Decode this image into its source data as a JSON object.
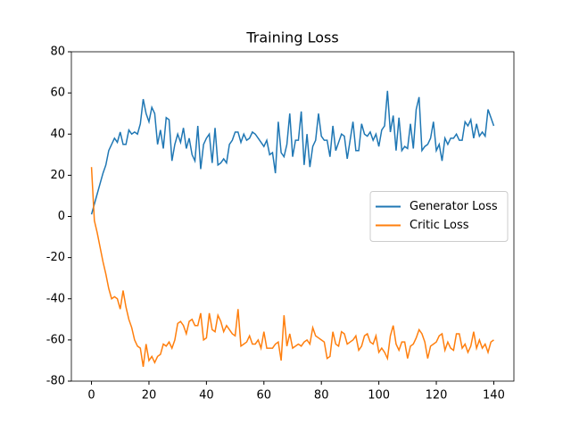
{
  "chart_data": {
    "type": "line",
    "title": "Training Loss",
    "x": [
      0,
      1,
      2,
      3,
      4,
      5,
      6,
      7,
      8,
      9,
      10,
      11,
      12,
      13,
      14,
      15,
      16,
      17,
      18,
      19,
      20,
      21,
      22,
      23,
      24,
      25,
      26,
      27,
      28,
      29,
      30,
      31,
      32,
      33,
      34,
      35,
      36,
      37,
      38,
      39,
      40,
      41,
      42,
      43,
      44,
      45,
      46,
      47,
      48,
      49,
      50,
      51,
      52,
      53,
      54,
      55,
      56,
      57,
      58,
      59,
      60,
      61,
      62,
      63,
      64,
      65,
      66,
      67,
      68,
      69,
      70,
      71,
      72,
      73,
      74,
      75,
      76,
      77,
      78,
      79,
      80,
      81,
      82,
      83,
      84,
      85,
      86,
      87,
      88,
      89,
      90,
      91,
      92,
      93,
      94,
      95,
      96,
      97,
      98,
      99,
      100,
      101,
      102,
      103,
      104,
      105,
      106,
      107,
      108,
      109,
      110,
      111,
      112,
      113,
      114,
      115,
      116,
      117,
      118,
      119,
      120,
      121,
      122,
      123,
      124,
      125,
      126,
      127,
      128,
      129,
      130,
      131,
      132,
      133,
      134,
      135,
      136,
      137,
      138,
      139,
      140
    ],
    "series": [
      {
        "name": "Generator Loss",
        "color": "#1f77b4",
        "values": [
          1,
          6,
          11,
          16,
          21,
          25,
          32,
          35,
          38,
          36,
          41,
          35,
          35,
          42,
          40,
          41,
          40,
          45,
          57,
          50,
          46,
          53,
          50,
          35,
          42,
          33,
          48,
          47,
          27,
          35,
          40,
          36,
          43,
          33,
          38,
          30,
          27,
          44,
          23,
          35,
          38,
          40,
          26,
          43,
          25,
          26,
          28,
          26,
          35,
          37,
          41,
          41,
          36,
          40,
          37,
          38,
          41,
          40,
          38,
          36,
          34,
          37,
          30,
          31,
          21,
          46,
          31,
          29,
          35,
          50,
          29,
          37,
          37,
          51,
          25,
          40,
          24,
          34,
          37,
          50,
          39,
          37,
          37,
          29,
          44,
          32,
          36,
          40,
          39,
          28,
          37,
          46,
          32,
          32,
          45,
          40,
          39,
          41,
          37,
          40,
          34,
          42,
          44,
          61,
          41,
          49,
          32,
          48,
          32,
          34,
          33,
          45,
          33,
          52,
          58,
          32,
          34,
          35,
          38,
          46,
          32,
          35,
          27,
          38,
          35,
          38,
          38,
          40,
          37,
          37,
          46,
          44,
          47,
          38,
          45,
          39,
          41,
          39,
          52,
          48,
          44
        ]
      },
      {
        "name": "Critic Loss",
        "color": "#ff7f0e",
        "values": [
          24,
          -2,
          -8,
          -15,
          -22,
          -28,
          -35,
          -40,
          -39,
          -40,
          -45,
          -36,
          -44,
          -50,
          -54,
          -60,
          -63,
          -64,
          -73,
          -62,
          -70,
          -68,
          -71,
          -68,
          -67,
          -62,
          -63,
          -61,
          -64,
          -60,
          -52,
          -51,
          -53,
          -57,
          -51,
          -50,
          -53,
          -53,
          -47,
          -60,
          -59,
          -47,
          -55,
          -56,
          -48,
          -51,
          -56,
          -53,
          -55,
          -57,
          -58,
          -45,
          -63,
          -62,
          -61,
          -58,
          -62,
          -62,
          -60,
          -64,
          -56,
          -64,
          -64,
          -64,
          -62,
          -61,
          -70,
          -48,
          -63,
          -57,
          -64,
          -63,
          -62,
          -63,
          -61,
          -60,
          -62,
          -54,
          -58,
          -59,
          -60,
          -61,
          -69,
          -68,
          -56,
          -62,
          -63,
          -56,
          -57,
          -62,
          -61,
          -60,
          -58,
          -65,
          -63,
          -58,
          -57,
          -61,
          -62,
          -58,
          -66,
          -64,
          -66,
          -69,
          -58,
          -53,
          -62,
          -65,
          -61,
          -61,
          -69,
          -63,
          -62,
          -59,
          -55,
          -57,
          -61,
          -69,
          -63,
          -62,
          -61,
          -58,
          -57,
          -65,
          -61,
          -64,
          -65,
          -57,
          -57,
          -64,
          -62,
          -66,
          -63,
          -56,
          -64,
          -60,
          -64,
          -62,
          -66,
          -61,
          -60
        ]
      }
    ],
    "xlim": [
      -7,
      147
    ],
    "ylim": [
      -80,
      80
    ],
    "xticks": [
      0,
      20,
      40,
      60,
      80,
      100,
      120,
      140
    ],
    "yticks": [
      -80,
      -60,
      -40,
      -20,
      0,
      20,
      40,
      60,
      80
    ],
    "grid": false,
    "legend": "center right"
  }
}
